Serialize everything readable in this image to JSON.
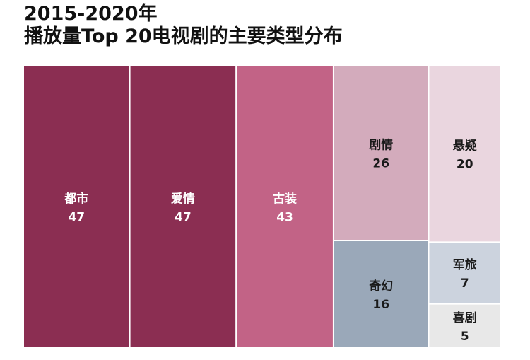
{
  "chart_data": {
    "type": "treemap",
    "title": [
      "2015-2020年",
      "播放量Top 20电视剧的主要类型分布"
    ],
    "items": [
      {
        "label": "都市",
        "value": 47,
        "color": "#8b2e52",
        "text_color": "#ffffff"
      },
      {
        "label": "爱情",
        "value": 47,
        "color": "#8b2e52",
        "text_color": "#ffffff"
      },
      {
        "label": "古装",
        "value": 43,
        "color": "#c26386",
        "text_color": "#ffffff"
      },
      {
        "label": "剧情",
        "value": 26,
        "color": "#d3abbc",
        "text_color": "#1a1a1a"
      },
      {
        "label": "奇幻",
        "value": 16,
        "color": "#9aa8b9",
        "text_color": "#1a1a1a"
      },
      {
        "label": "悬疑",
        "value": 20,
        "color": "#ead6df",
        "text_color": "#1a1a1a"
      },
      {
        "label": "军旅",
        "value": 7,
        "color": "#ccd3de",
        "text_color": "#1a1a1a"
      },
      {
        "label": "喜剧",
        "value": 5,
        "color": "#e8e8e8",
        "text_color": "#1a1a1a"
      }
    ]
  }
}
